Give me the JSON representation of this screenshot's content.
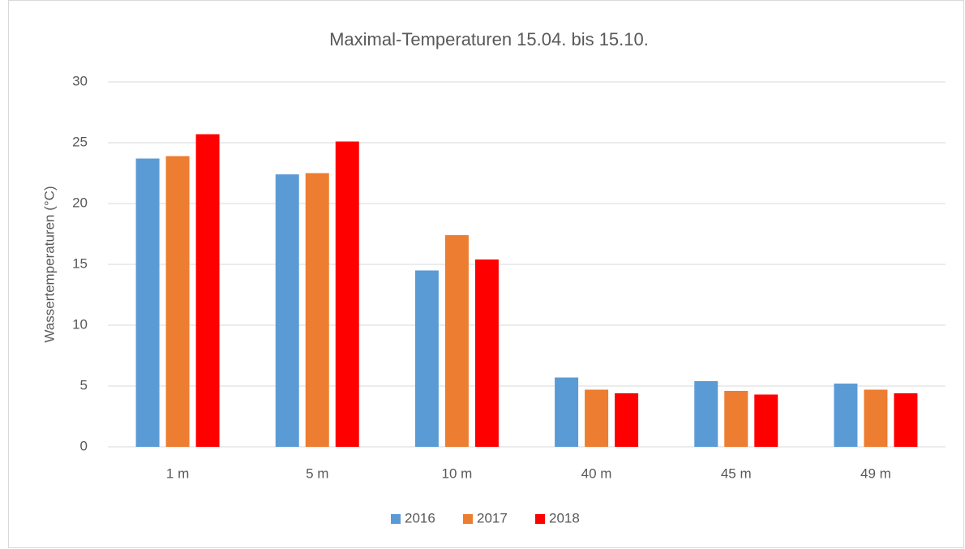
{
  "chart_data": {
    "type": "bar",
    "title": "Maximal-Temperaturen 15.04. bis 15.10.",
    "y_label": "Wassertemperaturen (°C)",
    "categories": [
      "1 m",
      "5 m",
      "10 m",
      "40 m",
      "45 m",
      "49 m"
    ],
    "series": [
      {
        "name": "2016",
        "color": "#5b9bd5",
        "values": [
          23.7,
          22.4,
          14.5,
          5.7,
          5.4,
          5.2
        ]
      },
      {
        "name": "2017",
        "color": "#ed7d31",
        "values": [
          23.9,
          22.5,
          17.4,
          4.7,
          4.6,
          4.7
        ]
      },
      {
        "name": "2018",
        "color": "#ff0000",
        "values": [
          25.7,
          25.1,
          15.4,
          4.4,
          4.3,
          4.4
        ]
      }
    ],
    "ylim": [
      0,
      30
    ],
    "yticks": [
      0,
      5,
      10,
      15,
      20,
      25,
      30
    ],
    "grid": true,
    "legend": "bottom"
  }
}
